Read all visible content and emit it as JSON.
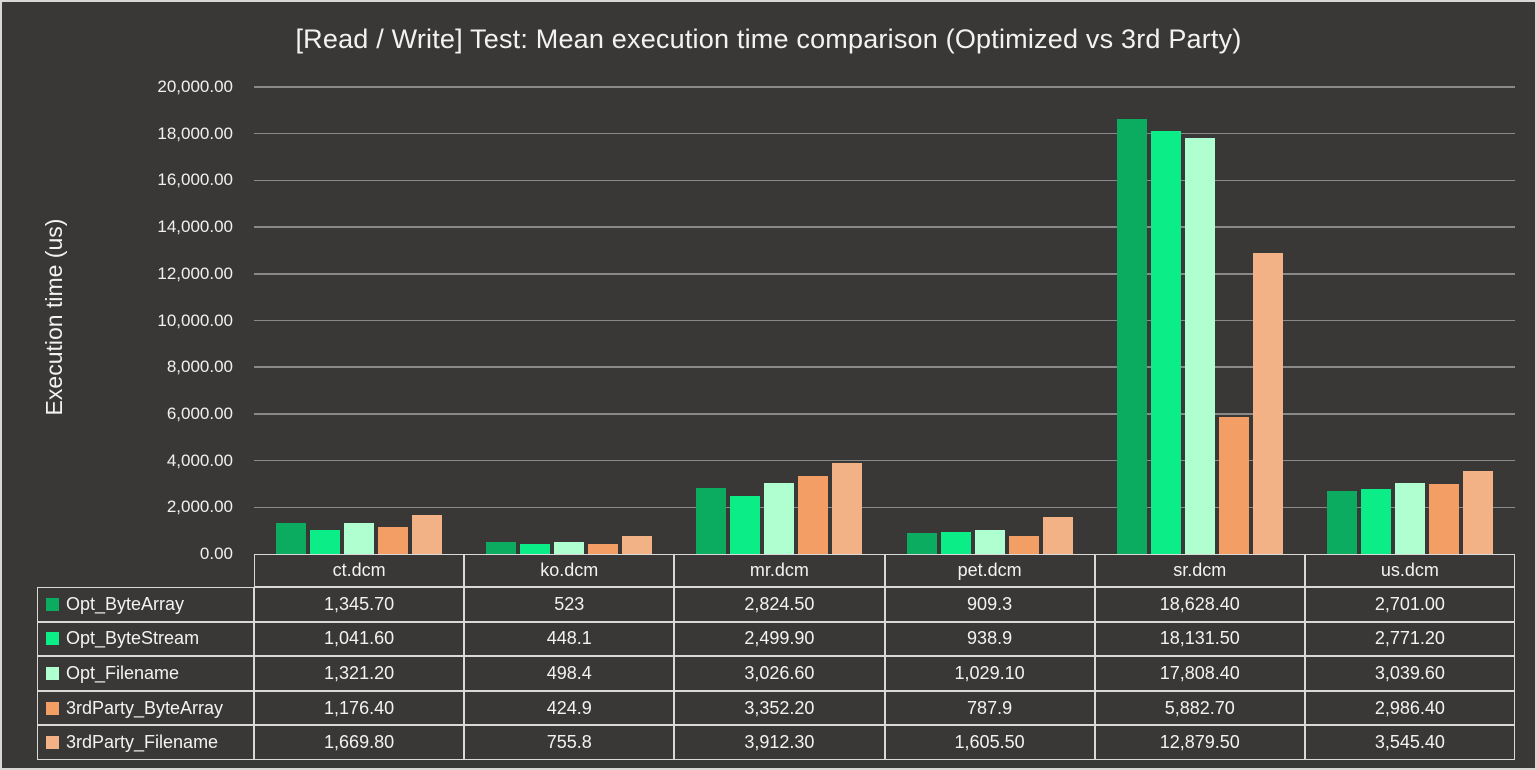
{
  "window": {
    "background": "#3A3837",
    "frame_border_color": "#D8D8D6",
    "text_color": "#F2F2F2"
  },
  "chart_data": {
    "type": "bar",
    "title": "[Read / Write] Test: Mean execution time comparison (Optimized vs 3rd Party)",
    "xlabel": "",
    "ylabel": "Execution time (us)",
    "ylim": [
      0,
      20000
    ],
    "y_tick_step": 2000,
    "y_tick_labels": [
      "20,000.00",
      "18,000.00",
      "16,000.00",
      "14,000.00",
      "12,000.00",
      "10,000.00",
      "8,000.00",
      "6,000.00",
      "4,000.00",
      "2,000.00",
      "0.00"
    ],
    "grid": true,
    "gridline_color": "#898989",
    "table_border_color": "#D9D9D9",
    "legend_position": "data-table-left-column",
    "categories": [
      "ct.dcm",
      "ko.dcm",
      "mr.dcm",
      "pet.dcm",
      "sr.dcm",
      "us.dcm"
    ],
    "series": [
      {
        "name": "Opt_ByteArray",
        "color": "#0BAC60",
        "values": [
          1345.7,
          523,
          2824.5,
          909.3,
          18628.4,
          2701
        ],
        "display_values": [
          "1,345.70",
          "523",
          "2,824.50",
          "909.3",
          "18,628.40",
          "2,701.00"
        ]
      },
      {
        "name": "Opt_ByteStream",
        "color": "#0BED86",
        "values": [
          1041.6,
          448.1,
          2499.9,
          938.9,
          18131.5,
          2771.2
        ],
        "display_values": [
          "1,041.60",
          "448.1",
          "2,499.90",
          "938.9",
          "18,131.50",
          "2,771.20"
        ]
      },
      {
        "name": "Opt_Filename",
        "color": "#B0FFD1",
        "values": [
          1321.2,
          498.4,
          3026.6,
          1029.1,
          17808.4,
          3039.6
        ],
        "display_values": [
          "1,321.20",
          "498.4",
          "3,026.60",
          "1,029.10",
          "17,808.40",
          "3,039.60"
        ]
      },
      {
        "name": "3rdParty_ByteArray",
        "color": "#F29E64",
        "values": [
          1176.4,
          424.9,
          3352.2,
          787.9,
          5882.7,
          2986.4
        ],
        "display_values": [
          "1,176.40",
          "424.9",
          "3,352.20",
          "787.9",
          "5,882.70",
          "2,986.40"
        ]
      },
      {
        "name": "3rdParty_Filename",
        "color": "#F3B286",
        "values": [
          1669.8,
          755.8,
          3912.3,
          1605.5,
          12879.5,
          3545.4
        ],
        "display_values": [
          "1,669.80",
          "755.8",
          "3,912.30",
          "1,605.50",
          "12,879.50",
          "3,545.40"
        ]
      }
    ]
  }
}
